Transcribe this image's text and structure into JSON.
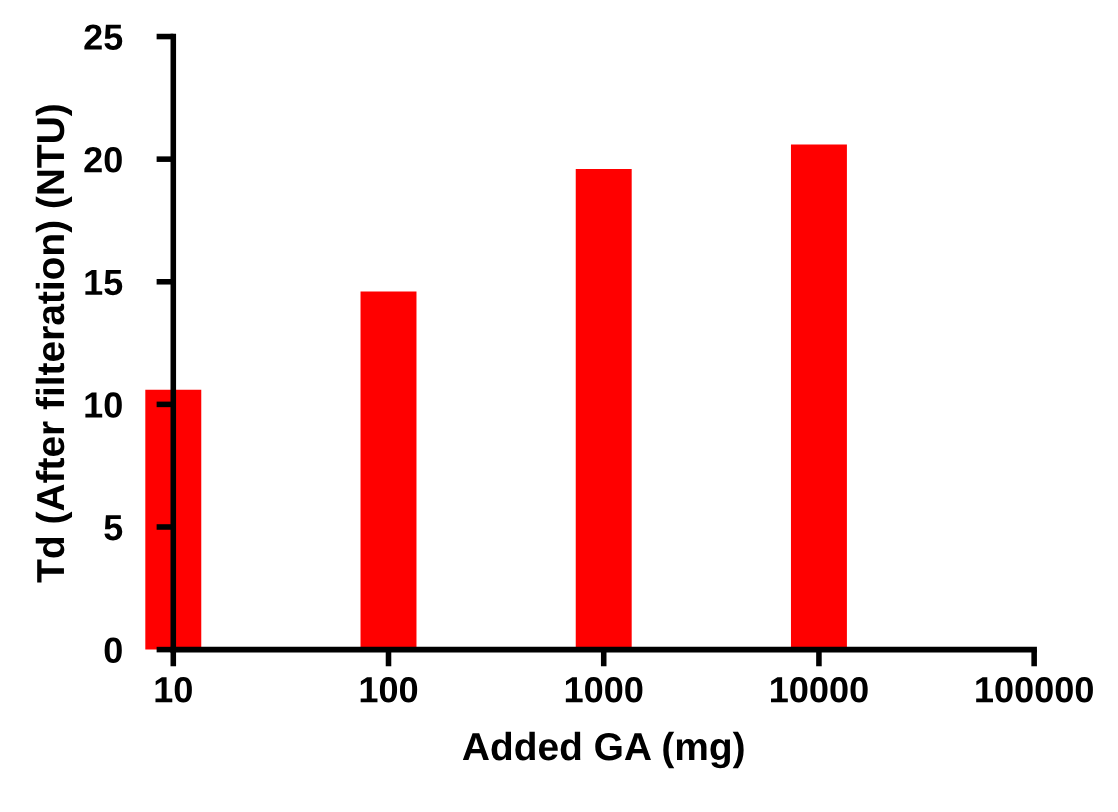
{
  "chart_data": {
    "type": "bar",
    "xlabel": "Added GA (mg)",
    "ylabel": "Td (After filteration) (NTU)",
    "x": [
      10,
      100,
      1000,
      10000
    ],
    "values": [
      10.6,
      14.6,
      19.6,
      20.6
    ],
    "color": "#ff0000",
    "log": "x",
    "xlim": [
      10,
      100000
    ],
    "xticks": [
      10,
      100,
      1000,
      10000,
      100000
    ],
    "ylim": [
      0,
      25
    ],
    "yticks": [
      0,
      5,
      10,
      15,
      20,
      25
    ],
    "grid": false,
    "legend": false
  }
}
